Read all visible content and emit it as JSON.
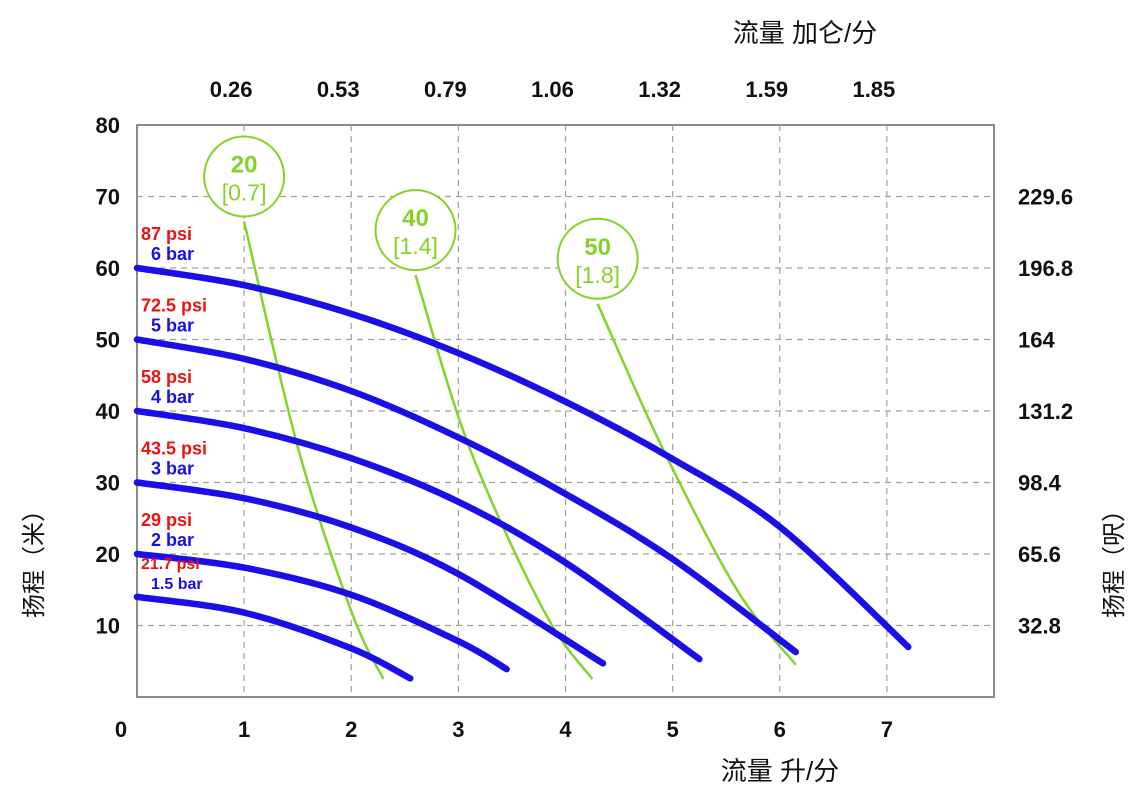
{
  "chart_data": {
    "type": "line",
    "title": "",
    "top_axis_title": "流量 加仑/分",
    "top_ticks": [
      "0.26",
      "0.53",
      "0.79",
      "1.06",
      "1.32",
      "1.59",
      "1.85"
    ],
    "xlabel": "流量 升/分",
    "ylabel": "扬程（米）",
    "right_axis_title": "扬程（呎）",
    "xlim": [
      0,
      8
    ],
    "ylim": [
      0,
      80
    ],
    "x_ticks": [
      "0",
      "1",
      "2",
      "3",
      "4",
      "5",
      "6",
      "7"
    ],
    "y_ticks": [
      "10",
      "20",
      "30",
      "40",
      "50",
      "60",
      "70",
      "80"
    ],
    "right_ticks": [
      "32.8",
      "65.6",
      "98.4",
      "131.2",
      "164",
      "196.8",
      "229.6"
    ],
    "grid": true,
    "series": [
      {
        "name": "6 bar",
        "psi": "87 psi",
        "bar": "6 bar",
        "x": [
          0,
          1,
          2,
          3,
          4,
          5,
          6,
          7.2
        ],
        "y": [
          60,
          57.6,
          53.6,
          48.1,
          41.3,
          33.3,
          23.8,
          7
        ]
      },
      {
        "name": "5 bar",
        "psi": "72.5 psi",
        "bar": "5 bar",
        "x": [
          0,
          1,
          2,
          3,
          4,
          5,
          6.15
        ],
        "y": [
          50,
          47.3,
          42.8,
          36.3,
          28.4,
          19.3,
          6.3
        ]
      },
      {
        "name": "4 bar",
        "psi": "58 psi",
        "bar": "4 bar",
        "x": [
          0,
          1,
          2,
          3,
          4,
          5.25
        ],
        "y": [
          40,
          37.6,
          33.4,
          27.3,
          18.8,
          5.3
        ]
      },
      {
        "name": "3 bar",
        "psi": "43.5 psi",
        "bar": "3 bar",
        "x": [
          0,
          1,
          2,
          3,
          4.35
        ],
        "y": [
          30,
          27.8,
          23.7,
          17.2,
          4.7
        ]
      },
      {
        "name": "2 bar",
        "psi": "29 psi",
        "bar": "2 bar",
        "x": [
          0,
          1,
          2,
          3,
          3.45
        ],
        "y": [
          20,
          18.1,
          14.3,
          7.8,
          3.9
        ]
      },
      {
        "name": "1.5 bar",
        "psi": "21.7 psi",
        "bar": "1.5 bar",
        "x": [
          0,
          1,
          2,
          2.55
        ],
        "y": [
          14,
          11.8,
          6.8,
          2.6
        ]
      }
    ],
    "air_curves": [
      {
        "label": "20",
        "sub": "[0.7]",
        "x": [
          1.0,
          1.5,
          2.0,
          2.3
        ],
        "y": [
          66.5,
          35,
          12,
          2.5
        ]
      },
      {
        "label": "40",
        "sub": "[1.4]",
        "x": [
          2.6,
          3.1,
          3.8,
          4.25
        ],
        "y": [
          59,
          35,
          12,
          2.5
        ]
      },
      {
        "label": "50",
        "sub": "[1.8]",
        "x": [
          4.3,
          4.9,
          5.6,
          6.15
        ],
        "y": [
          55,
          35,
          15,
          4.5
        ]
      }
    ],
    "colors": {
      "pump_curve": "#1a0fe6",
      "air_curve": "#86d12a",
      "psi_label": "#ee1111",
      "bar_label": "#1a0fe6",
      "grid": "#a0a0a0",
      "frame": "#8c8c8c",
      "text": "#111111"
    }
  }
}
